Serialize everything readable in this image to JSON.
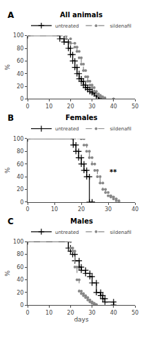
{
  "chart_data": [
    {
      "type": "step",
      "title": "All animals",
      "ylabel": "%",
      "xlim": [
        0,
        50
      ],
      "ylim": [
        0,
        100
      ],
      "xticks": [
        0,
        10,
        20,
        30,
        40,
        50
      ],
      "yticks": [
        0,
        20,
        40,
        60,
        80,
        100
      ],
      "grid": false,
      "legend": "upper right",
      "annotations": [
        {
          "text": "A"
        }
      ],
      "series": [
        {
          "name": "untreated",
          "color": "#000000",
          "line_style": "solid",
          "marker": "plus",
          "x": [
            0,
            15,
            15,
            17,
            17,
            19,
            19,
            20,
            20,
            21,
            21,
            22,
            22,
            23,
            23,
            24,
            24,
            25,
            25,
            26,
            26,
            27,
            27,
            28,
            28,
            29,
            29,
            30,
            30,
            31,
            31,
            32,
            32,
            33,
            33,
            34,
            34,
            35,
            35
          ],
          "values": [
            100,
            100,
            95,
            95,
            90,
            90,
            80,
            80,
            70,
            70,
            60,
            60,
            50,
            50,
            40,
            40,
            32,
            32,
            28,
            28,
            22,
            22,
            18,
            18,
            15,
            15,
            12,
            12,
            10,
            10,
            8,
            8,
            5,
            5,
            3,
            3,
            1,
            1,
            0
          ]
        },
        {
          "name": "sildenafil",
          "color": "#888888",
          "line_style": "dashed",
          "marker": "dot",
          "x": [
            0,
            18,
            18,
            20,
            20,
            22,
            22,
            23,
            23,
            24,
            24,
            25,
            25,
            26,
            26,
            27,
            27,
            28,
            28,
            29,
            29,
            30,
            30,
            31,
            31,
            32,
            32,
            33,
            33,
            34,
            34,
            35,
            35,
            36,
            36,
            40,
            40
          ],
          "values": [
            100,
            100,
            95,
            95,
            88,
            88,
            82,
            82,
            75,
            75,
            65,
            65,
            55,
            55,
            45,
            45,
            35,
            35,
            28,
            28,
            22,
            22,
            18,
            18,
            12,
            12,
            8,
            8,
            5,
            5,
            3,
            3,
            2,
            2,
            0,
            0,
            0
          ]
        }
      ]
    },
    {
      "type": "step",
      "title": "Females",
      "ylabel": "%",
      "xlim": [
        0,
        40
      ],
      "ylim": [
        0,
        100
      ],
      "xticks": [
        0,
        10,
        20,
        30,
        40
      ],
      "yticks": [
        0,
        20,
        40,
        60,
        80,
        100
      ],
      "grid": false,
      "legend": "upper right",
      "annotations": [
        {
          "text": "B"
        },
        {
          "text": "**",
          "x": 32,
          "y": 47,
          "color": "#000000"
        }
      ],
      "series": [
        {
          "name": "untreated",
          "color": "#000000",
          "line_style": "solid",
          "marker": "plus",
          "x": [
            0,
            17,
            17,
            18,
            18,
            19,
            19,
            20,
            20,
            21,
            21,
            22,
            22,
            23,
            23,
            24,
            24
          ],
          "values": [
            100,
            100,
            90,
            90,
            80,
            80,
            70,
            70,
            60,
            60,
            50,
            50,
            40,
            40,
            0,
            0,
            0
          ]
        },
        {
          "name": "sildenafil",
          "color": "#888888",
          "line_style": "dashed",
          "marker": "dot",
          "x": [
            0,
            20,
            20,
            21,
            21,
            22,
            22,
            23,
            23,
            24,
            24,
            25,
            25,
            26,
            26,
            27,
            27,
            28,
            28,
            29,
            29,
            30,
            30,
            31,
            31,
            32,
            32,
            33,
            33,
            34,
            34
          ],
          "values": [
            100,
            100,
            100,
            100,
            90,
            90,
            80,
            80,
            70,
            70,
            60,
            60,
            50,
            50,
            40,
            40,
            30,
            30,
            20,
            20,
            15,
            15,
            10,
            10,
            8,
            8,
            5,
            5,
            2,
            2,
            0
          ]
        }
      ]
    },
    {
      "type": "step",
      "title": "Males",
      "xlabel": "days",
      "ylabel": "%",
      "xlim": [
        0,
        50
      ],
      "ylim": [
        0,
        100
      ],
      "xticks": [
        0,
        10,
        20,
        30,
        40,
        50
      ],
      "yticks": [
        0,
        20,
        40,
        60,
        80,
        100
      ],
      "grid": false,
      "legend": "upper right",
      "annotations": [
        {
          "text": "C"
        }
      ],
      "series": [
        {
          "name": "untreated",
          "color": "#000000",
          "line_style": "solid",
          "marker": "plus",
          "x": [
            0,
            19,
            19,
            20,
            20,
            21,
            21,
            22,
            22,
            24,
            24,
            25,
            25,
            27,
            27,
            29,
            29,
            30,
            30,
            32,
            32,
            34,
            34,
            35,
            35,
            36,
            36,
            40,
            40
          ],
          "values": [
            100,
            100,
            90,
            90,
            85,
            85,
            80,
            80,
            70,
            70,
            60,
            60,
            55,
            55,
            50,
            50,
            45,
            45,
            35,
            35,
            20,
            20,
            15,
            15,
            10,
            10,
            5,
            5,
            0
          ]
        },
        {
          "name": "sildenafil",
          "color": "#888888",
          "line_style": "dashed",
          "marker": "dot",
          "x": [
            0,
            20,
            20,
            21,
            21,
            22,
            22,
            23,
            23,
            24,
            24,
            25,
            25,
            26,
            26,
            27,
            27,
            28,
            28,
            29,
            29,
            30,
            30,
            31,
            31,
            32,
            32
          ],
          "values": [
            100,
            100,
            90,
            90,
            85,
            85,
            60,
            60,
            40,
            40,
            22,
            22,
            18,
            18,
            15,
            15,
            12,
            12,
            8,
            8,
            5,
            5,
            3,
            3,
            1,
            1,
            0
          ]
        }
      ]
    }
  ]
}
